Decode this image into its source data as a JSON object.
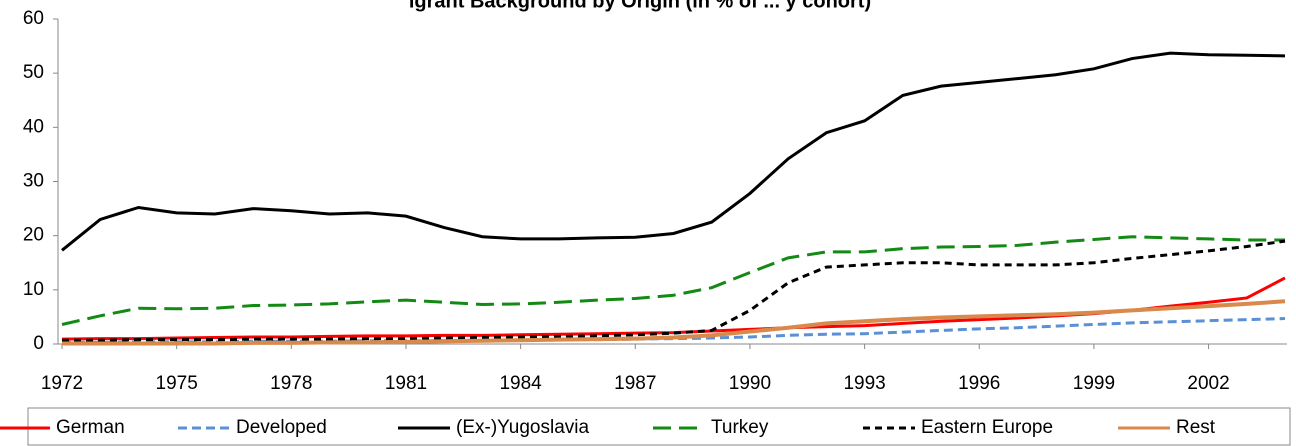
{
  "chart_data": {
    "type": "line",
    "title": "igrant Background by Origin (in % of ... y cohort)",
    "categories": [
      "1972",
      null,
      null,
      "1975",
      null,
      null,
      "1978",
      null,
      null,
      "1981",
      null,
      null,
      "1984",
      null,
      null,
      "1987",
      null,
      null,
      "1990",
      null,
      null,
      "1993",
      null,
      null,
      "1996",
      null,
      null,
      "1999",
      null,
      null,
      "2002",
      null,
      null
    ],
    "series": [
      {
        "name": "German",
        "color": "#ff0000",
        "dash": "none",
        "values": [
          0.9,
          1,
          1,
          1.1,
          1.2,
          1.3,
          1.3,
          1.4,
          1.5,
          1.5,
          1.6,
          1.6,
          1.7,
          1.8,
          1.9,
          2,
          2.1,
          2.4,
          2.7,
          3,
          3.2,
          3.4,
          3.8,
          4.2,
          4.5,
          4.8,
          5.2,
          5.6,
          6.2,
          7,
          7.7,
          8.5,
          12.2
        ]
      },
      {
        "name": "Developed",
        "color": "#5b8fd6",
        "dash": "9,5",
        "values": [
          0.3,
          0.3,
          0.4,
          0.4,
          0.4,
          0.5,
          0.5,
          0.5,
          0.6,
          0.6,
          0.6,
          0.7,
          0.7,
          0.8,
          0.8,
          0.9,
          1,
          1.1,
          1.3,
          1.6,
          1.8,
          1.9,
          2.2,
          2.5,
          2.8,
          3,
          3.3,
          3.6,
          3.9,
          4.1,
          4.3,
          4.5,
          4.7
        ]
      },
      {
        "name": "(Ex-)Yugoslavia",
        "color": "#000000",
        "dash": "none",
        "values": [
          17.3,
          23,
          25.2,
          24.2,
          24,
          25,
          24.6,
          24,
          24.2,
          23.6,
          21.5,
          19.8,
          19.4,
          19.4,
          19.6,
          19.7,
          20.4,
          22.5,
          27.8,
          34.2,
          39,
          41.2,
          45.9,
          47.6,
          48.3,
          49,
          49.7,
          50.8,
          52.7,
          53.7,
          53.4,
          53.3,
          53.2
        ]
      },
      {
        "name": "Turkey",
        "color": "#138a13",
        "dash": "18,8",
        "values": [
          3.6,
          5.2,
          6.6,
          6.5,
          6.6,
          7.1,
          7.2,
          7.4,
          7.8,
          8.1,
          7.7,
          7.3,
          7.4,
          7.7,
          8.1,
          8.4,
          9,
          10.4,
          13.2,
          15.9,
          17,
          17,
          17.6,
          17.9,
          18,
          18.2,
          18.8,
          19.3,
          19.8,
          19.6,
          19.4,
          19.2,
          19.2
        ]
      },
      {
        "name": "Eastern Europe",
        "color": "#000000",
        "dash": "7,5",
        "values": [
          0.7,
          0.7,
          0.8,
          0.8,
          0.8,
          0.9,
          0.9,
          0.9,
          1,
          1,
          1.1,
          1.2,
          1.3,
          1.4,
          1.5,
          1.7,
          2,
          2.5,
          6.2,
          11.3,
          14.2,
          14.6,
          15,
          15,
          14.6,
          14.6,
          14.6,
          15,
          15.8,
          16.5,
          17.2,
          18,
          19
        ]
      },
      {
        "name": "Rest",
        "color": "#d9894a",
        "dash": "none",
        "values": [
          0.1,
          0.1,
          0.1,
          0.1,
          0.1,
          0.2,
          0.2,
          0.3,
          0.3,
          0.4,
          0.5,
          0.6,
          0.7,
          0.8,
          0.9,
          1,
          1.2,
          1.6,
          2.3,
          3,
          3.8,
          4.2,
          4.6,
          4.9,
          5.1,
          5.3,
          5.5,
          5.8,
          6.2,
          6.6,
          7,
          7.4,
          7.9
        ]
      }
    ],
    "ylim": [
      0,
      60
    ],
    "yticks": [
      0,
      10,
      20,
      30,
      40,
      50,
      60
    ],
    "grid": false,
    "legend": "bottom"
  }
}
